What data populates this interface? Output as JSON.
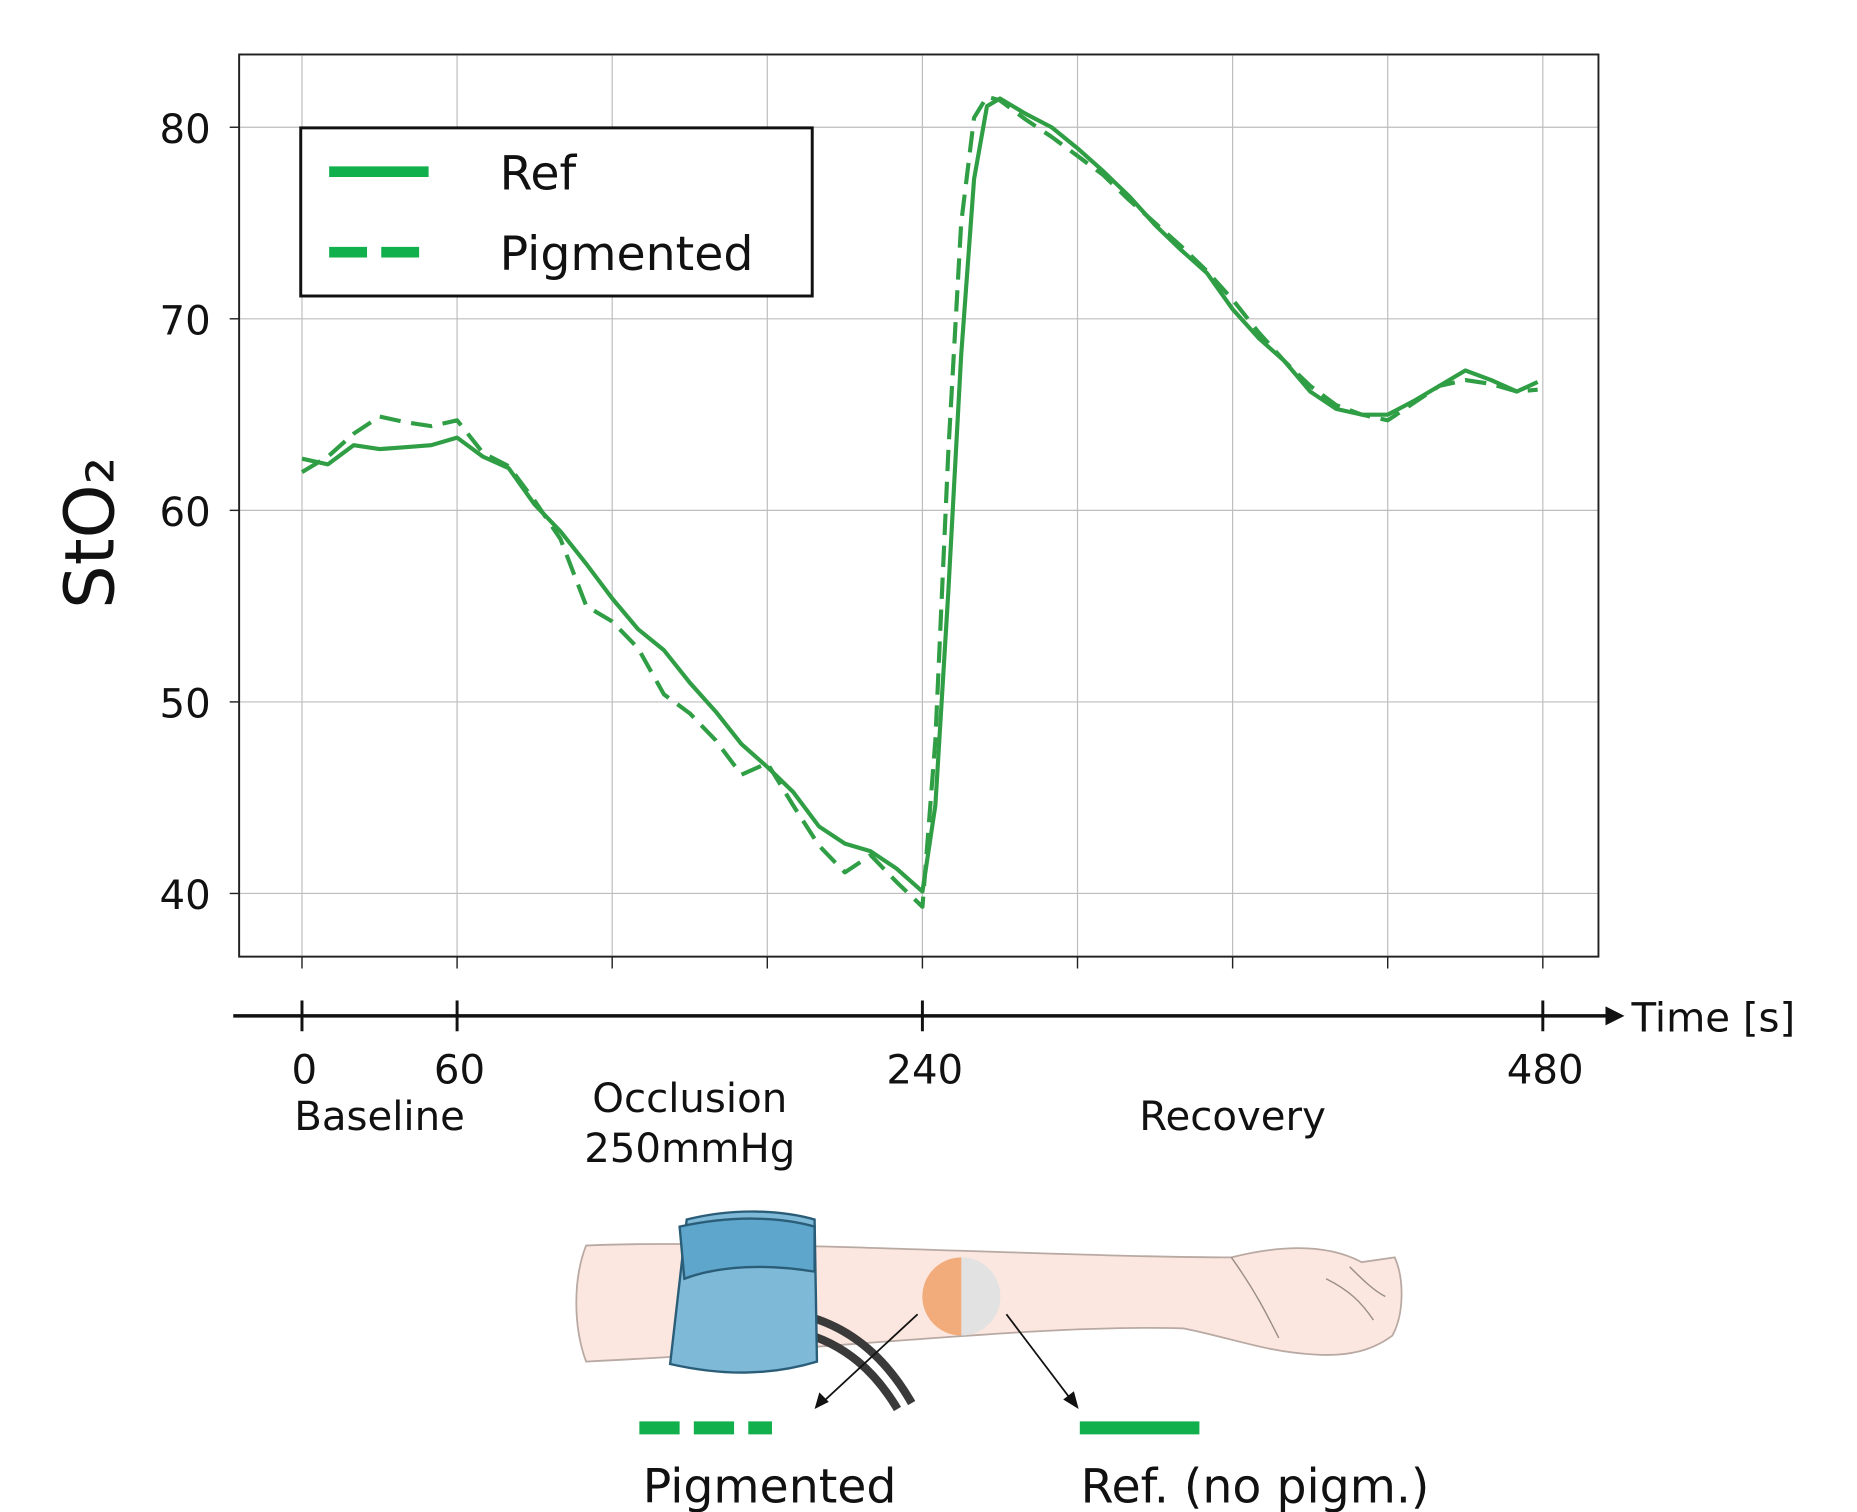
{
  "chart_data": {
    "type": "line",
    "y_label": "StO₂",
    "x": [
      0,
      10,
      20,
      30,
      40,
      50,
      60,
      70,
      80,
      90,
      100,
      110,
      120,
      130,
      140,
      150,
      160,
      170,
      180,
      190,
      200,
      210,
      220,
      230,
      240,
      245,
      250,
      255,
      260,
      265,
      270,
      280,
      290,
      300,
      310,
      320,
      330,
      340,
      350,
      360,
      370,
      380,
      390,
      400,
      410,
      420,
      430,
      440,
      450,
      460,
      470,
      478
    ],
    "series": [
      {
        "name": "Ref",
        "color": "#2f9e44",
        "linestyle": "solid",
        "values": [
          62.7,
          62.4,
          63.4,
          63.2,
          63.3,
          63.4,
          63.8,
          62.8,
          62.2,
          60.3,
          58.9,
          57.2,
          55.4,
          53.8,
          52.7,
          51.0,
          49.5,
          47.8,
          46.6,
          45.3,
          43.5,
          42.6,
          42.2,
          41.3,
          40.1,
          44.6,
          55.7,
          68.1,
          77.3,
          81.1,
          81.5,
          80.7,
          80.0,
          78.9,
          77.7,
          76.4,
          74.9,
          73.6,
          72.4,
          70.5,
          69.0,
          67.8,
          66.2,
          65.3,
          65.0,
          65.0,
          65.7,
          66.5,
          67.3,
          66.8,
          66.2,
          66.7
        ]
      },
      {
        "name": "Pigmented",
        "color": "#2f9e44",
        "linestyle": "dashed",
        "values": [
          62.0,
          62.8,
          64.0,
          64.9,
          64.6,
          64.4,
          64.7,
          63.0,
          62.3,
          60.5,
          58.5,
          55.0,
          54.2,
          52.8,
          50.4,
          49.4,
          48.0,
          46.2,
          46.8,
          44.6,
          42.5,
          41.1,
          42.0,
          40.6,
          39.3,
          48.0,
          63.0,
          75.0,
          80.5,
          81.6,
          81.4,
          80.4,
          79.5,
          78.5,
          77.5,
          76.2,
          75.0,
          73.8,
          72.5,
          71.0,
          69.3,
          67.8,
          66.5,
          65.5,
          65.0,
          64.7,
          65.6,
          66.5,
          66.8,
          66.6,
          66.2,
          66.3
        ]
      }
    ],
    "xlim": [
      -24.3,
      501.5
    ],
    "ylim": [
      36.7,
      83.8
    ],
    "yticks": [
      40,
      50,
      60,
      70,
      80
    ],
    "xgrid": [
      0,
      60,
      120,
      180,
      240,
      300,
      360,
      420,
      480
    ],
    "grid": true,
    "legend": "upper left",
    "timeline": {
      "label": "Time [s]",
      "ticks": [
        0,
        60,
        240,
        480
      ],
      "phases": [
        [
          "Baseline"
        ],
        [
          "Occlusion",
          "250mmHg"
        ],
        [
          "Recovery"
        ]
      ]
    },
    "illustration_labels": [
      "Pigmented",
      "Ref. (no pigm.)"
    ]
  }
}
